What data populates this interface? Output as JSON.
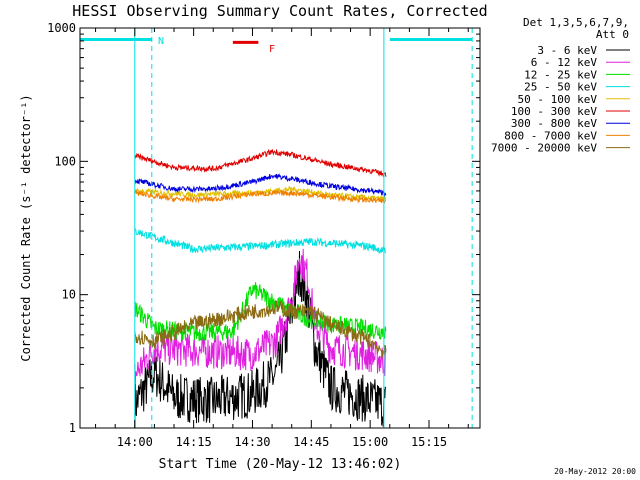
{
  "chart_data": {
    "type": "line",
    "title": "HESSI Observing Summary Count Rates, Corrected",
    "xlabel": "Start Time (20-May-12 13:46:02)",
    "ylabel": "Corrected Count Rate (s⁻¹ detector⁻¹)",
    "y_scale": "log",
    "ylim": [
      1,
      1000
    ],
    "xlim": [
      "13:46:02",
      "15:28:00"
    ],
    "x_ticks": [
      "14:00",
      "14:15",
      "14:30",
      "14:45",
      "15:00",
      "15:15"
    ],
    "y_ticks": [
      "1",
      "10",
      "100",
      "1000"
    ],
    "grid": false,
    "legend_title": [
      "Det 1,3,5,6,7,9,",
      "Att 0"
    ],
    "legend_position": "right",
    "series": [
      {
        "name": "3 - 6 keV",
        "color": "#000000",
        "x": [
          "14:00",
          "14:05",
          "14:10",
          "14:20",
          "14:30",
          "14:36",
          "14:40",
          "14:42",
          "14:44",
          "14:46",
          "14:50",
          "15:00",
          "15:04"
        ],
        "values": [
          1.5,
          2.6,
          1.7,
          1.6,
          1.8,
          2.5,
          7,
          15,
          9,
          4,
          2,
          1.6,
          1.5
        ]
      },
      {
        "name": "6 - 12 keV",
        "color": "#e020e0",
        "x": [
          "14:00",
          "14:05",
          "14:15",
          "14:30",
          "14:36",
          "14:40",
          "14:42",
          "14:44",
          "14:46",
          "14:50",
          "15:00",
          "15:04"
        ],
        "values": [
          2.5,
          4,
          3.8,
          3.6,
          4.5,
          9,
          20,
          14,
          6,
          4,
          3.5,
          3.2
        ]
      },
      {
        "name": "12 - 25 keV",
        "color": "#00e000",
        "x": [
          "14:00",
          "14:05",
          "14:15",
          "14:25",
          "14:30",
          "14:35",
          "14:40",
          "14:45",
          "14:50",
          "15:00",
          "15:04"
        ],
        "values": [
          8,
          5.6,
          5.2,
          5.3,
          11,
          9,
          7.5,
          6.5,
          6,
          5.5,
          5.3
        ]
      },
      {
        "name": "25 - 50 keV",
        "color": "#00e0e0",
        "x": [
          "14:00",
          "14:05",
          "14:15",
          "14:30",
          "14:45",
          "15:00",
          "15:04"
        ],
        "values": [
          30,
          27,
          22,
          23,
          25,
          23,
          21
        ]
      },
      {
        "name": "50 - 100 keV",
        "color": "#e0c000",
        "x": [
          "14:00",
          "14:15",
          "14:30",
          "14:40",
          "14:50",
          "15:04"
        ],
        "values": [
          60,
          56,
          58,
          62,
          56,
          52
        ]
      },
      {
        "name": "100 - 300 keV",
        "color": "#e00000",
        "x": [
          "14:00",
          "14:10",
          "14:20",
          "14:30",
          "14:35",
          "14:40",
          "14:50",
          "15:00",
          "15:04"
        ],
        "values": [
          110,
          90,
          88,
          105,
          118,
          112,
          95,
          85,
          80
        ]
      },
      {
        "name": "300 - 800 keV",
        "color": "#0000e0",
        "x": [
          "14:00",
          "14:10",
          "14:20",
          "14:30",
          "14:35",
          "14:40",
          "14:50",
          "15:00",
          "15:04"
        ],
        "values": [
          72,
          62,
          62,
          70,
          78,
          74,
          65,
          60,
          58
        ]
      },
      {
        "name": "800 - 7000 keV",
        "color": "#f08000",
        "x": [
          "14:00",
          "14:10",
          "14:20",
          "14:30",
          "14:40",
          "14:50",
          "15:04"
        ],
        "values": [
          58,
          52,
          52,
          57,
          58,
          54,
          50
        ]
      },
      {
        "name": "7000 - 20000 keV",
        "color": "#8b6a14",
        "x": [
          "14:00",
          "14:05",
          "14:15",
          "14:30",
          "14:36",
          "14:40",
          "14:45",
          "14:50",
          "15:00",
          "15:04"
        ],
        "values": [
          5,
          4.5,
          6,
          7.5,
          8,
          7.5,
          7.5,
          6,
          4.5,
          3.6
        ]
      }
    ],
    "annotations": {
      "N": {
        "label": "N",
        "color": "#00e0e0",
        "intervals": [
          [
            "13:46:02",
            "14:04:20"
          ],
          [
            "15:05:00",
            "15:26:00"
          ]
        ],
        "level": 820,
        "dashed_lines": [
          "14:04:20",
          "15:26:00"
        ]
      },
      "F": {
        "label": "F",
        "color": "#e00000",
        "interval": [
          "14:25:00",
          "14:31:30"
        ],
        "level": 780
      },
      "solid_lines": [
        "14:00:00",
        "15:03:30"
      ]
    },
    "footer": "20-May-2012 20:00"
  }
}
